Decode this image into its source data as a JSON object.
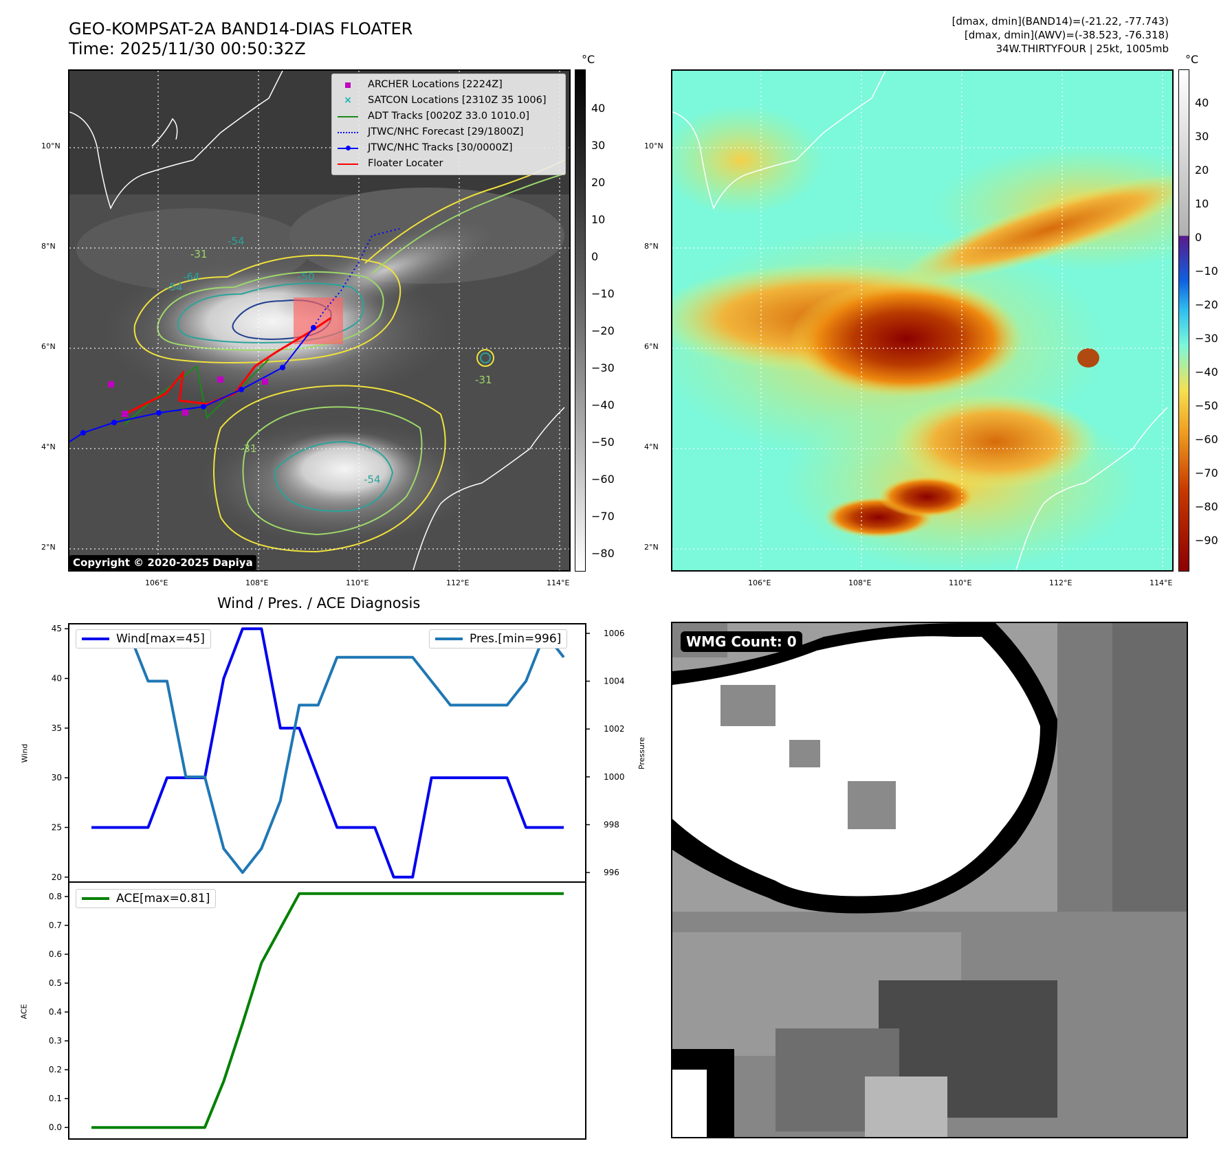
{
  "header": {
    "title_line1": "GEO-KOMPSAT-2A BAND14-DIAS FLOATER",
    "title_line2": "Time: 2025/11/30 00:50:32Z",
    "meta_line1": "[dmax, dmin](BAND14)=(-21.22, -77.743)",
    "meta_line2": "[dmax, dmin](AWV)=(-38.523, -76.318)",
    "meta_line3": "34W.THIRTYFOUR | 25kt, 1005mb"
  },
  "map": {
    "lat_labels": [
      "10°N",
      "8°N",
      "6°N",
      "4°N",
      "2°N"
    ],
    "lon_labels": [
      "106°E",
      "108°E",
      "110°E",
      "112°E",
      "114°E"
    ],
    "copyright": "Copyright © 2020-2025 Dapiya",
    "contour_labels": [
      "-54",
      "-31",
      "-64",
      "-54",
      "-50",
      "-31",
      "-54",
      "-31"
    ]
  },
  "legend": {
    "archer": "ARCHER Locations [2224Z]",
    "satcon": "SATCON Locations [2310Z 35 1006]",
    "adt": "ADT Tracks [0020Z 33.0 1010.0]",
    "jtwc_forecast": "JTWC/NHC Forecast [29/1800Z]",
    "jtwc_tracks": "JTWC/NHC Tracks [30/0000Z]",
    "floater": "Floater Locater"
  },
  "colorbar_left": {
    "unit": "°C",
    "ticks": [
      "40",
      "30",
      "20",
      "10",
      "0",
      "−10",
      "−20",
      "−30",
      "−40",
      "−50",
      "−60",
      "−70",
      "−80"
    ]
  },
  "colorbar_right": {
    "unit": "°C",
    "ticks": [
      "40",
      "30",
      "20",
      "10",
      "0",
      "−10",
      "−20",
      "−30",
      "−40",
      "−50",
      "−60",
      "−70",
      "−80",
      "−90"
    ]
  },
  "diagnosis": {
    "title": "Wind / Pres. / ACE Diagnosis",
    "wind_legend": "Wind[max=45]",
    "pres_legend": "Pres.[min=996]",
    "ace_legend": "ACE[max=0.81]",
    "wind_ylabel": "Wind",
    "pres_ylabel": "Pressure",
    "ace_ylabel": "ACE",
    "wind_ticks": [
      "45",
      "40",
      "35",
      "30",
      "25",
      "20"
    ],
    "pres_ticks": [
      "1006",
      "1004",
      "1002",
      "1000",
      "998",
      "996"
    ],
    "ace_ticks": [
      "0.8",
      "0.7",
      "0.6",
      "0.5",
      "0.4",
      "0.3",
      "0.2",
      "0.1",
      "0.0"
    ]
  },
  "wmg": {
    "label": "WMG Count: 0"
  },
  "chart_data": [
    {
      "type": "line",
      "title": "Wind / Pres. / ACE Diagnosis",
      "x": [
        0,
        1,
        2,
        3,
        4,
        5,
        6,
        7,
        8,
        9,
        10,
        11,
        12,
        13,
        14,
        15,
        16,
        17,
        18,
        19,
        20,
        21,
        22,
        23,
        24,
        25
      ],
      "series": [
        {
          "name": "Wind[max=45]",
          "axis": "left",
          "color": "#0000ee",
          "values": [
            25,
            25,
            25,
            25,
            30,
            30,
            30,
            40,
            45,
            45,
            35,
            35,
            30,
            25,
            25,
            25,
            20,
            20,
            30,
            30,
            30,
            30,
            30,
            25,
            25,
            25
          ]
        },
        {
          "name": "Pres.[min=996]",
          "axis": "right",
          "color": "#1f77b4",
          "values": [
            1006,
            1006,
            1006,
            1004,
            1004,
            1000,
            1000,
            997,
            996,
            997,
            999,
            1003,
            1003,
            1005,
            1005,
            1005,
            1005,
            1005,
            1004,
            1003,
            1003,
            1003,
            1003,
            1004,
            1006,
            1005
          ]
        }
      ],
      "ylabel": "Wind",
      "ylim": [
        19.5,
        45.5
      ],
      "y2label": "Pressure",
      "y2lim": [
        995.6,
        1006.4
      ]
    },
    {
      "type": "line",
      "x": [
        0,
        1,
        2,
        3,
        4,
        5,
        6,
        7,
        8,
        9,
        10,
        11,
        12,
        13,
        14,
        15,
        16,
        17,
        18,
        19,
        20,
        21,
        22,
        23,
        24,
        25
      ],
      "series": [
        {
          "name": "ACE[max=0.81]",
          "color": "#008000",
          "values": [
            0,
            0,
            0,
            0,
            0,
            0,
            0,
            0.16,
            0.36,
            0.57,
            0.69,
            0.81,
            0.81,
            0.81,
            0.81,
            0.81,
            0.81,
            0.81,
            0.81,
            0.81,
            0.81,
            0.81,
            0.81,
            0.81,
            0.81,
            0.81
          ]
        }
      ],
      "ylabel": "ACE",
      "ylim": [
        -0.04,
        0.85
      ]
    }
  ]
}
